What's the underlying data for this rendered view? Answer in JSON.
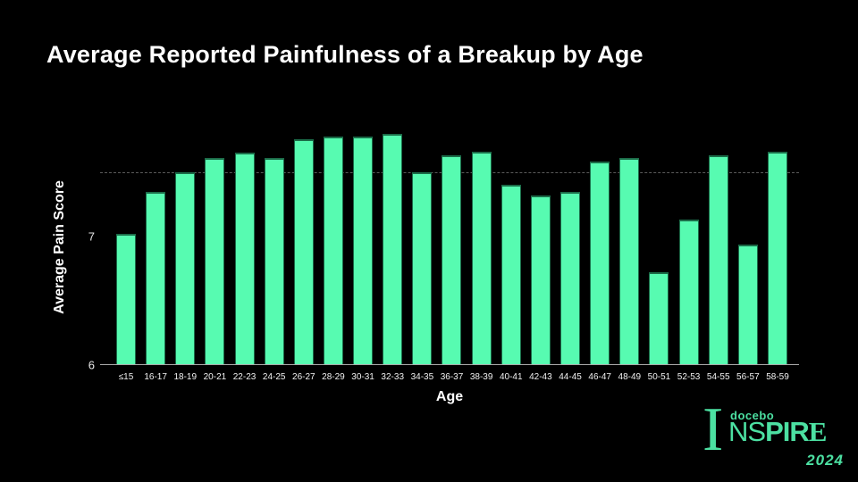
{
  "slide": {
    "background": "#000000",
    "title": "Average Reported Painfulness of a Breakup by Age"
  },
  "chart_data": {
    "type": "bar",
    "title": "Average Reported Painfulness of a Breakup by Age",
    "xlabel": "Age",
    "ylabel": "Average Pain Score",
    "categories": [
      "≤15",
      "16-17",
      "18-19",
      "20-21",
      "22-23",
      "24-25",
      "26-27",
      "28-29",
      "30-31",
      "32-33",
      "34-35",
      "36-37",
      "38-39",
      "40-41",
      "42-43",
      "44-45",
      "46-47",
      "48-49",
      "50-51",
      "52-53",
      "54-55",
      "56-57",
      "58-59"
    ],
    "values": [
      7.02,
      7.35,
      7.5,
      7.61,
      7.65,
      7.61,
      7.76,
      7.78,
      7.78,
      7.8,
      7.5,
      7.63,
      7.66,
      7.4,
      7.32,
      7.35,
      7.58,
      7.61,
      6.72,
      7.13,
      7.63,
      6.94,
      7.66
    ],
    "ylim": [
      6,
      7.87
    ],
    "yticks": [
      {
        "label": "6",
        "value": 6
      },
      {
        "label": "7",
        "value": 7
      }
    ],
    "gridline": {
      "value": 7.5,
      "style": "dashed",
      "color": "#5a5a5a"
    },
    "bar_color": "#57FBB1",
    "axis_color": "#a9a9a9",
    "background": "#000000",
    "legend_position": "none",
    "grid": "single horizontal dashed line at y=7.5"
  },
  "logo": {
    "brand": "docebo",
    "event_initial": "I",
    "letters": [
      "N",
      "S",
      "P",
      "I",
      "R",
      "E"
    ],
    "year": "2024",
    "color": "#4CE0A2"
  }
}
